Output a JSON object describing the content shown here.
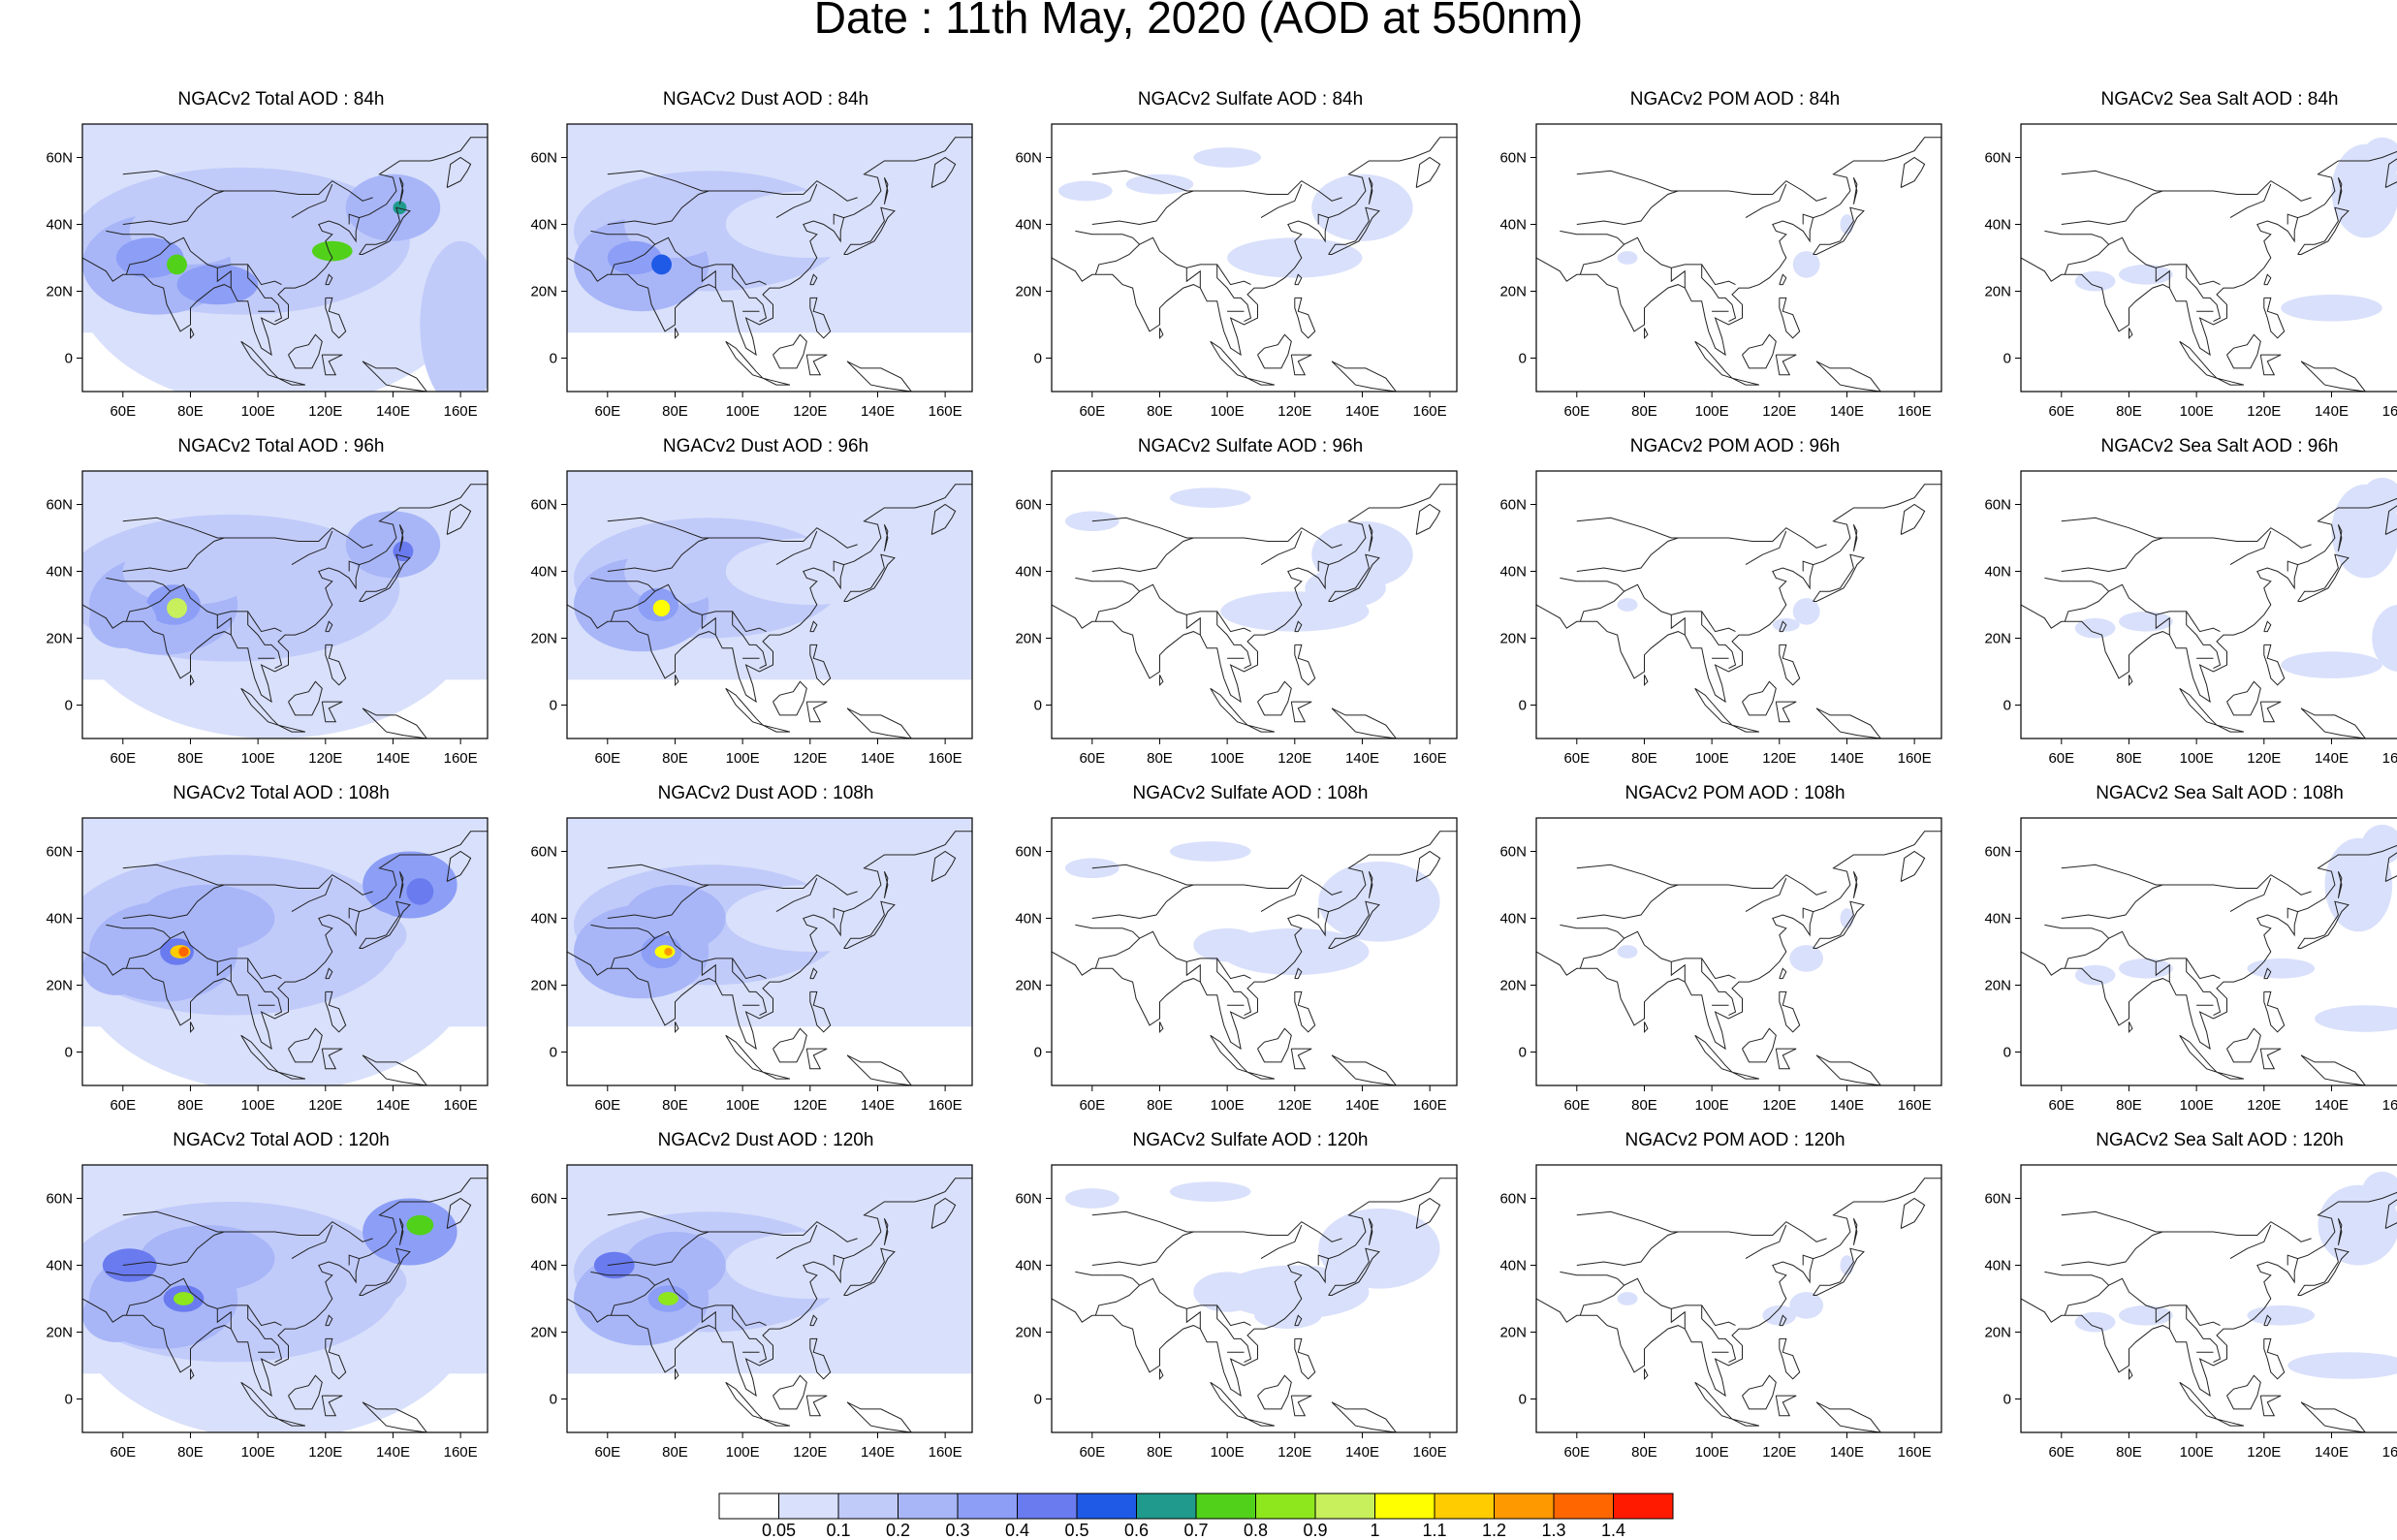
{
  "page_title": "Date : 11th May, 2020 (AOD at 550nm)",
  "axes": {
    "lon_ticks": [
      "60E",
      "80E",
      "100E",
      "120E",
      "140E",
      "160E"
    ],
    "lat_ticks": [
      "60N",
      "40N",
      "20N",
      "0"
    ],
    "lon_range": [
      48,
      168
    ],
    "lat_range": [
      -10,
      70
    ]
  },
  "panels": [
    {
      "row": 0,
      "col": 0,
      "title": "NGACv2 Total AOD : 84h",
      "species": "total",
      "forecast_hour": 84
    },
    {
      "row": 0,
      "col": 1,
      "title": "NGACv2 Dust AOD : 84h",
      "species": "dust",
      "forecast_hour": 84
    },
    {
      "row": 0,
      "col": 2,
      "title": "NGACv2 Sulfate AOD : 84h",
      "species": "sulfate",
      "forecast_hour": 84
    },
    {
      "row": 0,
      "col": 3,
      "title": "NGACv2 POM AOD : 84h",
      "species": "pom",
      "forecast_hour": 84
    },
    {
      "row": 0,
      "col": 4,
      "title": "NGACv2 Sea Salt AOD : 84h",
      "species": "seasalt",
      "forecast_hour": 84
    },
    {
      "row": 1,
      "col": 0,
      "title": "NGACv2 Total AOD : 96h",
      "species": "total",
      "forecast_hour": 96
    },
    {
      "row": 1,
      "col": 1,
      "title": "NGACv2 Dust AOD : 96h",
      "species": "dust",
      "forecast_hour": 96
    },
    {
      "row": 1,
      "col": 2,
      "title": "NGACv2 Sulfate AOD : 96h",
      "species": "sulfate",
      "forecast_hour": 96
    },
    {
      "row": 1,
      "col": 3,
      "title": "NGACv2 POM AOD : 96h",
      "species": "pom",
      "forecast_hour": 96
    },
    {
      "row": 1,
      "col": 4,
      "title": "NGACv2 Sea Salt AOD : 96h",
      "species": "seasalt",
      "forecast_hour": 96
    },
    {
      "row": 2,
      "col": 0,
      "title": "NGACv2 Total AOD : 108h",
      "species": "total",
      "forecast_hour": 108
    },
    {
      "row": 2,
      "col": 1,
      "title": "NGACv2 Dust AOD : 108h",
      "species": "dust",
      "forecast_hour": 108
    },
    {
      "row": 2,
      "col": 2,
      "title": "NGACv2 Sulfate AOD : 108h",
      "species": "sulfate",
      "forecast_hour": 108
    },
    {
      "row": 2,
      "col": 3,
      "title": "NGACv2 POM AOD : 108h",
      "species": "pom",
      "forecast_hour": 108
    },
    {
      "row": 2,
      "col": 4,
      "title": "NGACv2 Sea Salt AOD : 108h",
      "species": "seasalt",
      "forecast_hour": 108
    },
    {
      "row": 3,
      "col": 0,
      "title": "NGACv2 Total AOD : 120h",
      "species": "total",
      "forecast_hour": 120
    },
    {
      "row": 3,
      "col": 1,
      "title": "NGACv2 Dust AOD : 120h",
      "species": "dust",
      "forecast_hour": 120
    },
    {
      "row": 3,
      "col": 2,
      "title": "NGACv2 Sulfate AOD : 120h",
      "species": "sulfate",
      "forecast_hour": 120
    },
    {
      "row": 3,
      "col": 3,
      "title": "NGACv2 POM AOD : 120h",
      "species": "pom",
      "forecast_hour": 120
    },
    {
      "row": 3,
      "col": 4,
      "title": "NGACv2 Sea Salt  AOD : 120h",
      "species": "seasalt",
      "forecast_hour": 120
    }
  ],
  "colorbar": {
    "labels": [
      "0.05",
      "0.1",
      "0.2",
      "0.3",
      "0.4",
      "0.5",
      "0.6",
      "0.7",
      "0.8",
      "0.9",
      "1",
      "1.1",
      "1.2",
      "1.3",
      "1.4"
    ],
    "colors": [
      "#ffffff",
      "#d9e0fb",
      "#c1cbfa",
      "#a8b6f8",
      "#8c9ef6",
      "#6a7bef",
      "#1f5ae6",
      "#1f9a8c",
      "#52d11b",
      "#8ee61c",
      "#c7f05c",
      "#ffff00",
      "#ffcc00",
      "#ff9900",
      "#ff6600",
      "#ff1a00"
    ]
  }
}
